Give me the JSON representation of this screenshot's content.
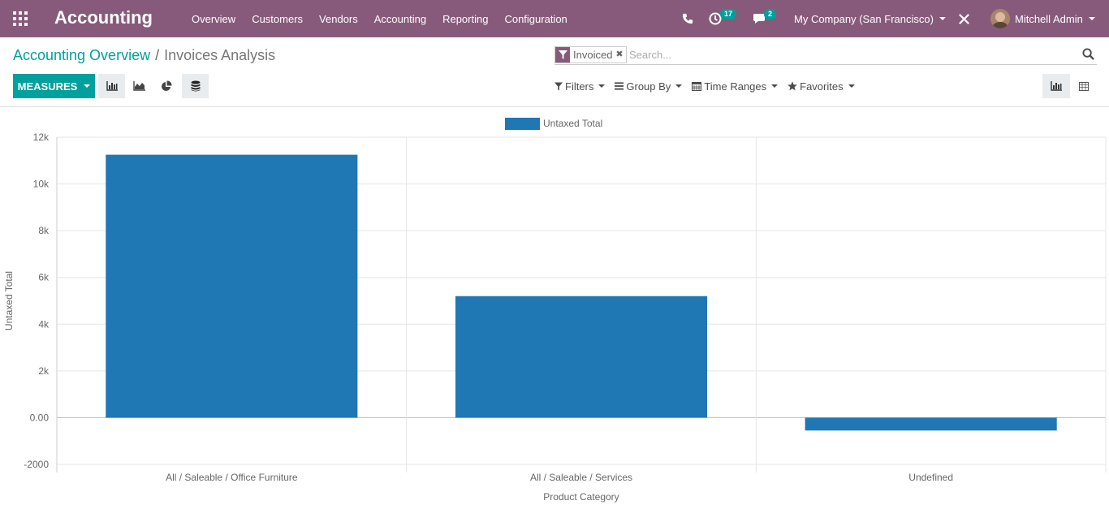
{
  "navbar": {
    "brand": "Accounting",
    "menu": [
      "Overview",
      "Customers",
      "Vendors",
      "Accounting",
      "Reporting",
      "Configuration"
    ],
    "activities_count": "17",
    "messages_count": "2",
    "company": "My Company (San Francisco)",
    "user": "Mitchell Admin"
  },
  "breadcrumb": {
    "parent": "Accounting Overview",
    "separator": "/",
    "current": "Invoices Analysis"
  },
  "search": {
    "facet_value": "Invoiced",
    "placeholder": "Search..."
  },
  "toolbar": {
    "measures_label": "MEASURES",
    "filters_label": "Filters",
    "groupby_label": "Group By",
    "timeranges_label": "Time Ranges",
    "favorites_label": "Favorites"
  },
  "colors": {
    "brand": "#875a7b",
    "accent": "#00a09d",
    "bar": "#1f77b4"
  },
  "chart_data": {
    "type": "bar",
    "categories": [
      "All / Saleable / Office Furniture",
      "All / Saleable / Services",
      "Undefined"
    ],
    "series": [
      {
        "name": "Untaxed Total",
        "values": [
          11250,
          5200,
          -550
        ]
      }
    ],
    "xlabel": "Product Category",
    "ylabel": "Untaxed Total",
    "ylim": [
      -2000,
      12000
    ],
    "yticks": [
      -2000,
      0,
      2000,
      4000,
      6000,
      8000,
      10000,
      12000
    ],
    "ytick_labels": [
      "-2000",
      "0.00",
      "2k",
      "4k",
      "6k",
      "8k",
      "10k",
      "12k"
    ],
    "legend_position": "top-center",
    "grid": true
  }
}
